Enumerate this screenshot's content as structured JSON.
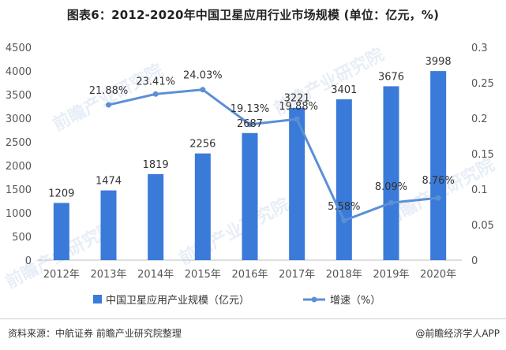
{
  "title": "图表6：2012-2020年中国卫星应用行业市场规模 (单位：亿元，%)",
  "source": "资料来源：中航证券 前瞻产业研究院整理",
  "brand": "@前瞻经济学人APP",
  "watermark": "前瞻产业研究院",
  "colors": {
    "bar": "#3a7ad8",
    "line": "#5b8fd6",
    "axis_text": "#555555",
    "label_text": "#333333"
  },
  "chart_data": {
    "type": "bar+line",
    "categories": [
      "2012年",
      "2013年",
      "2014年",
      "2015年",
      "2016年",
      "2017年",
      "2018年",
      "2019年",
      "2020年"
    ],
    "series": [
      {
        "name": "中国卫星应用产业规模（亿元）",
        "type": "bar",
        "axis": "left",
        "values": [
          1209,
          1474,
          1819,
          2256,
          2687,
          3221,
          3401,
          3676,
          3998
        ],
        "labels": [
          "1209",
          "1474",
          "1819",
          "2256",
          "2687",
          "3221",
          "3401",
          "3676",
          "3998"
        ]
      },
      {
        "name": "增速（%）",
        "type": "line",
        "axis": "right",
        "values": [
          null,
          0.2188,
          0.2341,
          0.2403,
          0.1913,
          0.1988,
          0.0558,
          0.0809,
          0.0876
        ],
        "labels": [
          "",
          "21.88%",
          "23.41%",
          "24.03%",
          "19.13%",
          "19.88%",
          "5.58%",
          "8.09%",
          "8.76%"
        ]
      }
    ],
    "y_left": {
      "min": 0,
      "max": 4500,
      "ticks": [
        0,
        500,
        1000,
        1500,
        2000,
        2500,
        3000,
        3500,
        4000,
        4500
      ],
      "tick_labels": [
        "0",
        "500",
        "1000",
        "1500",
        "2000",
        "2500",
        "3000",
        "3500",
        "4000",
        "4500"
      ]
    },
    "y_right": {
      "min": 0,
      "max": 0.3,
      "ticks": [
        0,
        0.05,
        0.1,
        0.15,
        0.2,
        0.25,
        0.3
      ],
      "tick_labels": [
        "0",
        "0.05",
        "0.1",
        "0.15",
        "0.2",
        "0.25",
        "0.3"
      ]
    },
    "legend": [
      {
        "name": "中国卫星应用产业规模（亿元）",
        "kind": "bar"
      },
      {
        "name": "增速（%）",
        "kind": "line"
      }
    ],
    "legend_position": "bottom"
  }
}
